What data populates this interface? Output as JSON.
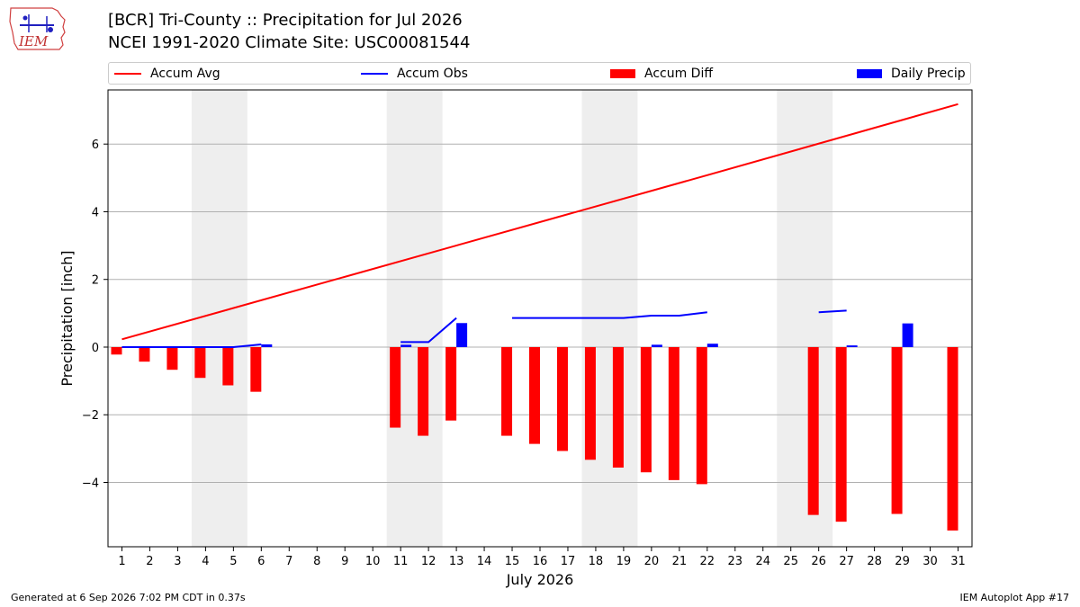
{
  "header": {
    "title_line1": "[BCR] Tri-County :: Precipitation for Jul 2026",
    "title_line2": "NCEI 1991-2020 Climate Site: USC00081544",
    "logo_text": "IEM"
  },
  "legend": {
    "accum_avg": "Accum Avg",
    "accum_obs": "Accum Obs",
    "accum_diff": "Accum Diff",
    "daily_precip": "Daily Precip",
    "placement": "top"
  },
  "footer": {
    "generated": "Generated at 6 Sep 2026 7:02 PM CDT in 0.37s",
    "app": "IEM Autoplot App #17"
  },
  "colors": {
    "accum_avg": "#ff0000",
    "accum_obs": "#0000ff",
    "accum_diff": "#ff0000",
    "daily_precip": "#0000ff",
    "weekend_shade": "#eeeeee",
    "grid": "#b0b0b0"
  },
  "chart_data": {
    "type": "bar",
    "xlabel": "July 2026",
    "ylabel": "Precipitation [inch]",
    "xlim": [
      0.5,
      31.5
    ],
    "ylim": [
      -5.9,
      7.6
    ],
    "yticks": [
      -4,
      -2,
      0,
      2,
      4,
      6
    ],
    "ytick_labels": [
      "−4",
      "−2",
      "0",
      "2",
      "4",
      "6"
    ],
    "grid": true,
    "days": [
      1,
      2,
      3,
      4,
      5,
      6,
      7,
      8,
      9,
      10,
      11,
      12,
      13,
      14,
      15,
      16,
      17,
      18,
      19,
      20,
      21,
      22,
      23,
      24,
      25,
      26,
      27,
      28,
      29,
      30,
      31
    ],
    "weekend_spans": [
      [
        3.5,
        5.5
      ],
      [
        10.5,
        12.5
      ],
      [
        17.5,
        19.5
      ],
      [
        24.5,
        26.5
      ]
    ],
    "series": [
      {
        "name": "Accum Avg",
        "kind": "line",
        "x": [
          1,
          21,
          22,
          31
        ],
        "values": [
          0.23,
          4.85,
          5.08,
          7.18
        ]
      },
      {
        "name": "Accum Obs",
        "kind": "line",
        "segments": [
          {
            "x": [
              1,
              2,
              3,
              4,
              5,
              6
            ],
            "values": [
              0.0,
              0.0,
              0.0,
              0.0,
              0.0,
              0.08
            ]
          },
          {
            "x": [
              11,
              12,
              13
            ],
            "values": [
              0.15,
              0.15,
              0.86
            ]
          },
          {
            "x": [
              15,
              16,
              17,
              18,
              19,
              20,
              21,
              22
            ],
            "values": [
              0.86,
              0.86,
              0.86,
              0.86,
              0.86,
              0.93,
              0.93,
              1.03
            ]
          },
          {
            "x": [
              26,
              27
            ],
            "values": [
              1.03,
              1.08
            ]
          }
        ]
      },
      {
        "name": "Accum Diff",
        "kind": "bar",
        "x": [
          1,
          2,
          3,
          4,
          5,
          6,
          11,
          12,
          13,
          15,
          16,
          17,
          18,
          19,
          20,
          21,
          22,
          26,
          27,
          29,
          31
        ],
        "values": [
          -0.22,
          -0.43,
          -0.67,
          -0.91,
          -1.13,
          -1.32,
          -2.38,
          -2.62,
          -2.17,
          -2.62,
          -2.86,
          -3.07,
          -3.33,
          -3.56,
          -3.7,
          -3.93,
          -4.05,
          -4.96,
          -5.16,
          -4.93,
          -5.42
        ]
      },
      {
        "name": "Daily Precip",
        "kind": "bar",
        "x": [
          6,
          11,
          13,
          20,
          22,
          27,
          29
        ],
        "values": [
          0.08,
          0.07,
          0.71,
          0.07,
          0.1,
          0.05,
          0.7
        ]
      }
    ]
  }
}
